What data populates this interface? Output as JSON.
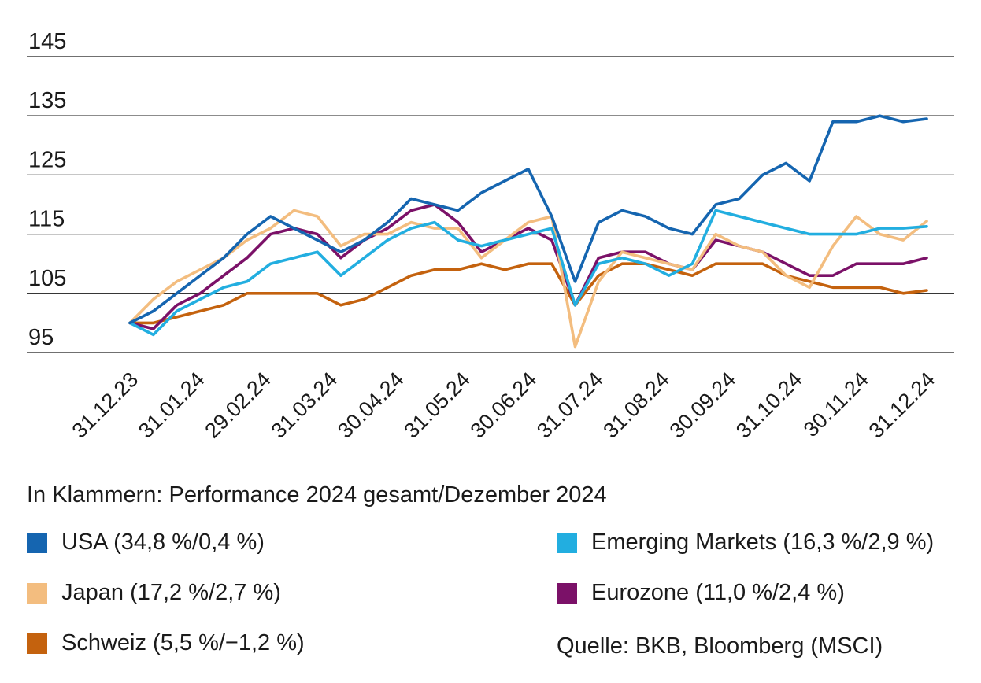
{
  "chart_data": {
    "type": "line",
    "title": "",
    "xlabel": "",
    "ylabel": "",
    "ylim": [
      95,
      145
    ],
    "yticks": [
      95,
      105,
      115,
      125,
      135,
      145
    ],
    "x_tick_labels": [
      "31.12.23",
      "31.01.24",
      "29.02.24",
      "31.03.24",
      "30.04.24",
      "31.05.24",
      "30.06.24",
      "31.07.24",
      "31.08.24",
      "30.09.24",
      "31.10.24",
      "30.11.24",
      "31.12.24"
    ],
    "grid": "horizontal",
    "note": "In Klammern: Performance 2024 gesamt/Dezember 2024",
    "source": "Quelle: BKB, Bloomberg (MSCI)",
    "series": [
      {
        "name": "USA (34,8 %/0,4 %)",
        "color": "#1565b0",
        "values": [
          100,
          102,
          105,
          108,
          111,
          115,
          118,
          116,
          114,
          112,
          114,
          117,
          121,
          120,
          119,
          122,
          124,
          126,
          118,
          107,
          117,
          119,
          118,
          116,
          115,
          120,
          121,
          125,
          127,
          124,
          134,
          134,
          135,
          134,
          134.5
        ]
      },
      {
        "name": "Emerging Markets (16,3 %/2,9 %)",
        "color": "#22aee0",
        "values": [
          100,
          98,
          102,
          104,
          106,
          107,
          110,
          111,
          112,
          108,
          111,
          114,
          116,
          117,
          114,
          113,
          114,
          115,
          116,
          103,
          110,
          111,
          110,
          108,
          110,
          119,
          118,
          117,
          116,
          115,
          115,
          115,
          116,
          116,
          116.3
        ]
      },
      {
        "name": "Japan (17,2 %/2,7 %)",
        "color": "#f3bd7f",
        "values": [
          100,
          104,
          107,
          109,
          111,
          114,
          116,
          119,
          118,
          113,
          115,
          115,
          117,
          116,
          116,
          111,
          114,
          117,
          118,
          96,
          107,
          112,
          111,
          110,
          109,
          115,
          113,
          112,
          108,
          106,
          113,
          118,
          115,
          114,
          117.2
        ]
      },
      {
        "name": "Eurozone (11,0 %/2,4 %)",
        "color": "#7b1168",
        "values": [
          100,
          99,
          103,
          105,
          108,
          111,
          115,
          116,
          115,
          111,
          114,
          116,
          119,
          120,
          117,
          112,
          114,
          116,
          114,
          103,
          111,
          112,
          112,
          110,
          109,
          114,
          113,
          112,
          110,
          108,
          108,
          110,
          110,
          110,
          111
        ]
      },
      {
        "name": "Schweiz (5,5 %/−1,2 %)",
        "color": "#c4620e",
        "values": [
          100,
          100,
          101,
          102,
          103,
          105,
          105,
          105,
          105,
          103,
          104,
          106,
          108,
          109,
          109,
          110,
          109,
          110,
          110,
          103,
          108,
          110,
          110,
          109,
          108,
          110,
          110,
          110,
          108,
          107,
          106,
          106,
          106,
          105,
          105.5
        ]
      }
    ]
  },
  "legend_layout": [
    "left",
    "right",
    "left",
    "right",
    "left"
  ]
}
